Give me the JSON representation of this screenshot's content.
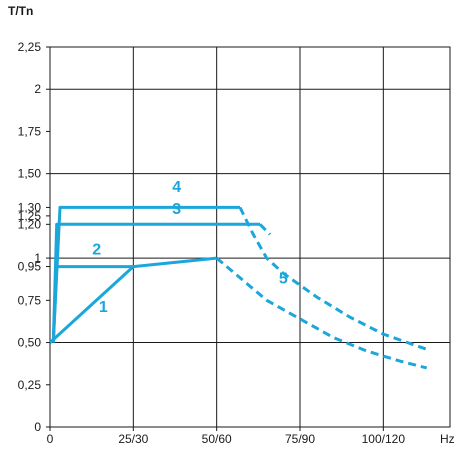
{
  "chart_data": {
    "type": "line",
    "ylabel": "T/Tn",
    "xlabel": "Hz",
    "xlim": [
      0,
      120
    ],
    "ylim": [
      0,
      2.25
    ],
    "x_ticks": [
      {
        "value": 0,
        "label": "0"
      },
      {
        "value": 25,
        "label": "25/30"
      },
      {
        "value": 50,
        "label": "50/60"
      },
      {
        "value": 75,
        "label": "75/90"
      },
      {
        "value": 100,
        "label": "100/120"
      }
    ],
    "y_ticks": [
      {
        "value": 0,
        "label": "0"
      },
      {
        "value": 0.25,
        "label": "0,25"
      },
      {
        "value": 0.5,
        "label": "0,50"
      },
      {
        "value": 0.75,
        "label": "0,75"
      },
      {
        "value": 0.95,
        "label": "0,95"
      },
      {
        "value": 1.0,
        "label": "1"
      },
      {
        "value": 1.2,
        "label": "1,20"
      },
      {
        "value": 1.25,
        "label": "1,25"
      },
      {
        "value": 1.3,
        "label": "1,30"
      },
      {
        "value": 1.5,
        "label": "1,50"
      },
      {
        "value": 1.75,
        "label": "1,75"
      },
      {
        "value": 2.0,
        "label": "2"
      },
      {
        "value": 2.25,
        "label": "2,25"
      }
    ],
    "grid_x": [
      25,
      50,
      75,
      100
    ],
    "grid_y": [
      0.5,
      1.0,
      1.5,
      2.0
    ],
    "color": "#1ba6dc",
    "series": [
      {
        "name": "1",
        "style": "solid",
        "points": [
          [
            0,
            0.5
          ],
          [
            25,
            0.95
          ],
          [
            50,
            1.0
          ]
        ],
        "label_at": [
          16,
          0.68
        ]
      },
      {
        "name": "2",
        "style": "solid",
        "points": [
          [
            1,
            0.5
          ],
          [
            2,
            0.95
          ],
          [
            25,
            0.95
          ]
        ],
        "label_at": [
          14,
          1.02
        ]
      },
      {
        "name": "3",
        "style": "solid",
        "points": [
          [
            1,
            0.5
          ],
          [
            2,
            1.2
          ],
          [
            63,
            1.2
          ]
        ],
        "label_at": [
          38,
          1.26
        ]
      },
      {
        "name": "4",
        "style": "solid",
        "points": [
          [
            1,
            0.5
          ],
          [
            3,
            1.3
          ],
          [
            57,
            1.3
          ]
        ],
        "label_at": [
          38,
          1.39
        ]
      },
      {
        "name": "5",
        "style": "dashed",
        "points": [
          [
            50,
            1.0
          ],
          [
            56,
            0.9
          ],
          [
            65,
            0.75
          ],
          [
            75,
            0.64
          ],
          [
            85,
            0.53
          ],
          [
            95,
            0.45
          ],
          [
            105,
            0.39
          ],
          [
            113,
            0.35
          ]
        ],
        "label_at": [
          70,
          0.85
        ]
      },
      {
        "name": "",
        "style": "dashed",
        "points": [
          [
            57,
            1.3
          ],
          [
            61,
            1.14
          ],
          [
            65,
            1.0
          ],
          [
            70,
            0.91
          ],
          [
            80,
            0.77
          ],
          [
            90,
            0.65
          ],
          [
            100,
            0.55
          ],
          [
            113,
            0.46
          ]
        ]
      },
      {
        "name": "",
        "style": "dashed",
        "points": [
          [
            63,
            1.2
          ],
          [
            66,
            1.14
          ]
        ]
      }
    ]
  }
}
